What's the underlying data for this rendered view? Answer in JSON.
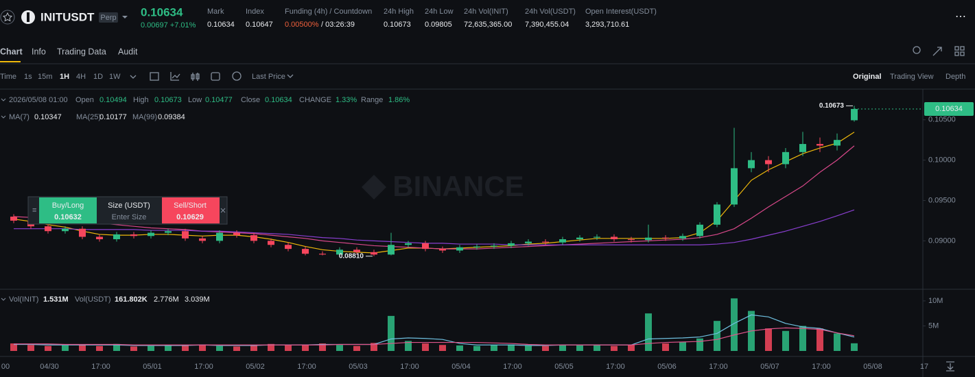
{
  "header": {
    "symbol": "INITUSDT",
    "badge": "Perp",
    "price": "0.10634",
    "change": "0.00697 +7.01%",
    "stats": [
      {
        "label": "Mark",
        "value": "0.10634"
      },
      {
        "label": "Index",
        "value": "0.10647"
      },
      {
        "label": "Funding (4h) / Countdown",
        "value": "0.00500%",
        "extra": "/ 03:26:39"
      },
      {
        "label": "24h High",
        "value": "0.10673"
      },
      {
        "label": "24h Low",
        "value": "0.09805"
      },
      {
        "label": "24h Vol(INIT)",
        "value": "72,635,365.00"
      },
      {
        "label": "24h Vol(USDT)",
        "value": "7,390,455.04"
      },
      {
        "label": "Open Interest(USDT)",
        "value": "3,293,710.61"
      }
    ]
  },
  "tabs": [
    "Chart",
    "Info",
    "Trading Data",
    "Audit"
  ],
  "toolbar": {
    "intervals": [
      "Time",
      "1s",
      "15m",
      "1H",
      "4H",
      "1D",
      "1W"
    ],
    "price_type": "Last Price",
    "views": [
      "Original",
      "Trading View",
      "Depth"
    ]
  },
  "ohlc_info": {
    "date": "2026/05/08 01:00",
    "fields": [
      {
        "label": "Open",
        "value": "0.10494"
      },
      {
        "label": "High",
        "value": "0.10673"
      },
      {
        "label": "Low",
        "value": "0.10477"
      },
      {
        "label": "Close",
        "value": "0.10634"
      },
      {
        "label": "CHANGE",
        "value": "1.33%"
      },
      {
        "label": "Range",
        "value": "1.86%"
      }
    ]
  },
  "order_panel": {
    "buy_label": "Buy/Long",
    "buy_price": "0.10632",
    "size_label": "Size (USDT)",
    "size_placeholder": "Enter Size",
    "sell_label": "Sell/Short",
    "sell_price": "0.10629"
  },
  "volume_legend": [
    {
      "name": "Vol(INIT)",
      "value": "1.531M"
    },
    {
      "name": "Vol(USDT)",
      "value": "161.802K"
    },
    {
      "value": "2.776M"
    },
    {
      "value": "3.039M"
    }
  ],
  "chart_data": [
    {
      "type": "candlestick",
      "watermark": "BINANCE",
      "up_color": "#2ebd85",
      "down_color": "#f6465d",
      "open": [
        0.093,
        0.0925,
        0.0918,
        0.0912,
        0.0915,
        0.0905,
        0.0902,
        0.0908,
        0.0906,
        0.091,
        0.0912,
        0.0903,
        0.09,
        0.091,
        0.0907,
        0.09,
        0.0895,
        0.089,
        0.0884,
        0.0883,
        0.0889,
        0.0886,
        0.0883,
        0.0895,
        0.0897,
        0.089,
        0.0888,
        0.0892,
        0.0893,
        0.0894,
        0.0897,
        0.0899,
        0.0898,
        0.0902,
        0.0904,
        0.0905,
        0.0902,
        0.0901,
        0.0904,
        0.0903,
        0.0906,
        0.092,
        0.0945,
        0.099,
        0.1,
        0.0995,
        0.101,
        0.102,
        0.1018,
        0.10494
      ],
      "high": [
        0.0933,
        0.0928,
        0.0921,
        0.0918,
        0.0918,
        0.0908,
        0.0911,
        0.0911,
        0.0913,
        0.0915,
        0.0915,
        0.0906,
        0.0913,
        0.0913,
        0.091,
        0.0903,
        0.0898,
        0.0893,
        0.0887,
        0.0892,
        0.0892,
        0.0889,
        0.091,
        0.09,
        0.09,
        0.0893,
        0.0895,
        0.0896,
        0.0897,
        0.09,
        0.0902,
        0.0902,
        0.0905,
        0.0907,
        0.0908,
        0.0908,
        0.0905,
        0.092,
        0.0907,
        0.0909,
        0.0923,
        0.0948,
        0.104,
        0.101,
        0.1005,
        0.1015,
        0.1035,
        0.1028,
        0.1033,
        0.10673
      ],
      "low": [
        0.0922,
        0.0915,
        0.0909,
        0.0909,
        0.0902,
        0.0899,
        0.0899,
        0.0903,
        0.0903,
        0.0907,
        0.09,
        0.0897,
        0.0897,
        0.0904,
        0.0897,
        0.0892,
        0.0887,
        0.0882,
        0.0882,
        0.0882,
        0.0883,
        0.0881,
        0.0882,
        0.0892,
        0.0887,
        0.0885,
        0.0885,
        0.0889,
        0.089,
        0.0891,
        0.0894,
        0.0895,
        0.0895,
        0.0899,
        0.0901,
        0.0899,
        0.0898,
        0.0898,
        0.09,
        0.09,
        0.0903,
        0.0917,
        0.0942,
        0.0985,
        0.0985,
        0.099,
        0.1005,
        0.101,
        0.1012,
        0.10477
      ],
      "close": [
        0.0925,
        0.0918,
        0.0912,
        0.0915,
        0.0905,
        0.0902,
        0.0908,
        0.0906,
        0.091,
        0.0912,
        0.0903,
        0.09,
        0.091,
        0.0907,
        0.09,
        0.0895,
        0.089,
        0.0884,
        0.0883,
        0.0889,
        0.0886,
        0.0883,
        0.0895,
        0.0897,
        0.089,
        0.0888,
        0.0892,
        0.0893,
        0.0894,
        0.0897,
        0.0899,
        0.0898,
        0.0902,
        0.0904,
        0.0905,
        0.0902,
        0.0901,
        0.0904,
        0.0903,
        0.0906,
        0.092,
        0.0945,
        0.099,
        0.1,
        0.0995,
        0.101,
        0.102,
        0.1018,
        0.1025,
        0.10634
      ],
      "series": [
        {
          "name": "MA(7)",
          "color": "#f0b90b",
          "values": [
            0.0927,
            0.0924,
            0.092,
            0.0917,
            0.0912,
            0.0908,
            0.0907,
            0.0907,
            0.0908,
            0.0908,
            0.0907,
            0.0906,
            0.0907,
            0.0907,
            0.0905,
            0.0902,
            0.0898,
            0.0893,
            0.0889,
            0.0887,
            0.0886,
            0.0885,
            0.0888,
            0.0891,
            0.0891,
            0.089,
            0.0891,
            0.0892,
            0.0893,
            0.0894,
            0.0896,
            0.0897,
            0.0899,
            0.0901,
            0.0903,
            0.0903,
            0.0903,
            0.0903,
            0.0903,
            0.0904,
            0.091,
            0.0925,
            0.095,
            0.0975,
            0.0988,
            0.0998,
            0.1008,
            0.1015,
            0.1021,
            0.10347
          ]
        },
        {
          "name": "MA(25)",
          "color": "#d9488a",
          "values": [
            0.093,
            0.0929,
            0.0928,
            0.0926,
            0.0924,
            0.0922,
            0.092,
            0.0918,
            0.0916,
            0.0915,
            0.0914,
            0.0912,
            0.0911,
            0.091,
            0.0909,
            0.0907,
            0.0905,
            0.0903,
            0.09,
            0.0898,
            0.0896,
            0.0894,
            0.0893,
            0.0892,
            0.0891,
            0.089,
            0.089,
            0.089,
            0.0891,
            0.0892,
            0.0893,
            0.0894,
            0.0895,
            0.0896,
            0.0897,
            0.0898,
            0.0899,
            0.09,
            0.0901,
            0.0902,
            0.0904,
            0.0908,
            0.0915,
            0.0928,
            0.0942,
            0.0955,
            0.0968,
            0.0985,
            0.1,
            0.10177
          ]
        },
        {
          "name": "MA(99)",
          "color": "#8a3fd1",
          "values": [
            0.0915,
            0.0915,
            0.0915,
            0.0915,
            0.0914,
            0.0914,
            0.0914,
            0.0914,
            0.0913,
            0.0913,
            0.0913,
            0.0912,
            0.0912,
            0.0911,
            0.091,
            0.0909,
            0.0908,
            0.0906,
            0.0904,
            0.0903,
            0.0901,
            0.09,
            0.0899,
            0.0898,
            0.0897,
            0.0897,
            0.0896,
            0.0896,
            0.0896,
            0.0895,
            0.0895,
            0.0895,
            0.0895,
            0.0895,
            0.0895,
            0.0895,
            0.0895,
            0.0895,
            0.0895,
            0.0895,
            0.0895,
            0.0896,
            0.0898,
            0.0902,
            0.0907,
            0.0912,
            0.0918,
            0.0924,
            0.0931,
            0.09384
          ]
        }
      ],
      "ylim": [
        0.084,
        0.1088
      ],
      "yticks": [
        {
          "value": 0.09,
          "label": "0.09000"
        },
        {
          "value": 0.095,
          "label": "0.09500"
        },
        {
          "value": 0.1,
          "label": "0.10000"
        },
        {
          "value": 0.105,
          "label": "0.10500"
        }
      ],
      "high_marker": 0.10673,
      "low_marker": {
        "value": 0.0881,
        "label": "0.08810"
      }
    },
    {
      "type": "bar",
      "values": [
        1.5,
        1.2,
        1.0,
        1.1,
        1.3,
        1.0,
        1.4,
        0.9,
        1.0,
        1.2,
        1.1,
        1.3,
        1.0,
        0.9,
        1.2,
        1.4,
        1.1,
        1.3,
        1.5,
        1.2,
        1.0,
        1.6,
        7.0,
        2.0,
        1.5,
        1.2,
        1.1,
        1.0,
        1.2,
        1.3,
        1.1,
        1.0,
        1.2,
        1.1,
        1.3,
        1.0,
        1.2,
        7.5,
        1.5,
        1.8,
        2.5,
        6.0,
        10.5,
        8.0,
        4.5,
        4.0,
        5.0,
        4.5,
        3.5,
        1.531
      ],
      "series": [
        {
          "color": "#6fc0e0",
          "values": [
            1.3,
            1.3,
            1.2,
            1.2,
            1.2,
            1.2,
            1.2,
            1.1,
            1.1,
            1.1,
            1.1,
            1.2,
            1.1,
            1.1,
            1.1,
            1.2,
            1.2,
            1.2,
            1.3,
            1.3,
            1.3,
            1.3,
            2.4,
            2.6,
            2.5,
            2.3,
            1.5,
            1.2,
            1.2,
            1.2,
            1.1,
            1.1,
            1.2,
            1.2,
            1.2,
            1.2,
            1.2,
            2.4,
            2.5,
            2.6,
            2.8,
            3.5,
            5.5,
            7.2,
            6.8,
            5.5,
            4.8,
            4.5,
            3.6,
            2.776
          ]
        },
        {
          "color": "#e0548a",
          "values": [
            1.4,
            1.4,
            1.4,
            1.3,
            1.3,
            1.3,
            1.3,
            1.2,
            1.2,
            1.2,
            1.2,
            1.2,
            1.2,
            1.2,
            1.2,
            1.2,
            1.2,
            1.2,
            1.2,
            1.3,
            1.3,
            1.3,
            1.5,
            1.7,
            1.7,
            1.7,
            1.7,
            1.7,
            1.6,
            1.5,
            1.3,
            1.2,
            1.2,
            1.2,
            1.2,
            1.2,
            1.2,
            1.5,
            1.7,
            1.8,
            1.9,
            2.3,
            3.2,
            4.0,
            4.4,
            4.6,
            4.5,
            4.3,
            3.6,
            3.039
          ]
        }
      ],
      "ylim": [
        0,
        11.5
      ],
      "yticks": [
        {
          "value": 5,
          "label": "5M"
        },
        {
          "value": 10,
          "label": "10M"
        }
      ],
      "x_labels": [
        "00",
        "04/30",
        "17:00",
        "05/01",
        "17:00",
        "05/02",
        "17:00",
        "05/03",
        "17:00",
        "05/04",
        "17:00",
        "05/05",
        "17:00",
        "05/06",
        "17:00",
        "05/07",
        "17:00",
        "05/08",
        "17"
      ]
    }
  ]
}
